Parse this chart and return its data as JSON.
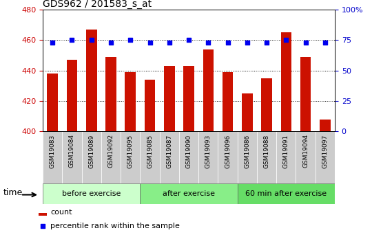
{
  "title": "GDS962 / 201583_s_at",
  "samples": [
    "GSM19083",
    "GSM19084",
    "GSM19089",
    "GSM19092",
    "GSM19095",
    "GSM19085",
    "GSM19087",
    "GSM19090",
    "GSM19093",
    "GSM19096",
    "GSM19086",
    "GSM19088",
    "GSM19091",
    "GSM19094",
    "GSM19097"
  ],
  "counts": [
    438,
    447,
    467,
    449,
    439,
    434,
    443,
    443,
    454,
    439,
    425,
    435,
    465,
    449,
    408
  ],
  "percentiles": [
    73,
    75,
    75,
    73,
    75,
    73,
    73,
    75,
    73,
    73,
    73,
    73,
    75,
    73,
    73
  ],
  "group_defs": [
    {
      "label": "before exercise",
      "start": 0,
      "end": 5,
      "color": "#CCFFCC"
    },
    {
      "label": "after exercise",
      "start": 5,
      "end": 10,
      "color": "#88EE88"
    },
    {
      "label": "60 min after exercise",
      "start": 10,
      "end": 15,
      "color": "#66DD66"
    }
  ],
  "ylim": [
    400,
    480
  ],
  "yticks": [
    400,
    420,
    440,
    460,
    480
  ],
  "y2lim": [
    0,
    100
  ],
  "y2ticks": [
    0,
    25,
    50,
    75,
    100
  ],
  "bar_color": "#CC1100",
  "dot_color": "#0000EE",
  "bar_width": 0.55,
  "tick_bg": "#CCCCCC",
  "label_color_left": "#CC0000",
  "label_color_right": "#0000CC",
  "legend_count_label": "count",
  "legend_pct_label": "percentile rank within the sample",
  "time_label": "time"
}
